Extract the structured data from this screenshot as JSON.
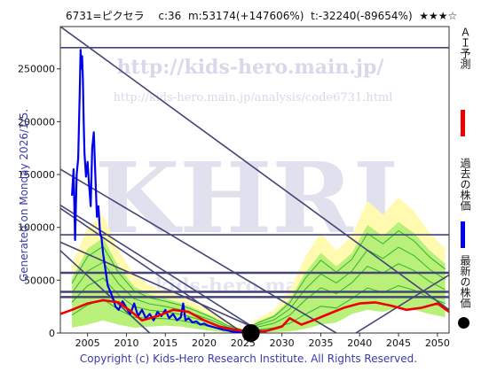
{
  "header": {
    "title": "6731=ピクセラ　 c:36  m:53174(+147606%)  t:-32240(-89654%)  ★★★☆"
  },
  "side_note": "Generated on Monday 2026/1/5.",
  "footer": "Copyright (c) Kids-Hero Research Institute. All Rights Reserved.",
  "watermark": {
    "url_main": "http://kids-hero.main.jp/",
    "url_path": "http://kids-hero.main.jp/analysis/code6731.html",
    "logo": "KHRI",
    "small": "(c) kids-hero.main.jp"
  },
  "legend": [
    {
      "text": "ＡＩ予測",
      "color": "#ee0000"
    },
    {
      "text": "過去の株価",
      "color": "#0000ee"
    },
    {
      "text": "最新の株価",
      "color": "#000000"
    }
  ],
  "chart_data": {
    "type": "line",
    "xlim": [
      2001.5,
      2051.5
    ],
    "ylim": [
      0,
      290000
    ],
    "xticks": [
      2005,
      2010,
      2015,
      2020,
      2025,
      2030,
      2035,
      2040,
      2045,
      2050
    ],
    "yticks": [
      0,
      50000,
      100000,
      150000,
      200000,
      250000
    ],
    "series": [
      {
        "name": "過去の株価",
        "color": "#0000ee",
        "x": [
          2003.0,
          2003.2,
          2003.4,
          2003.6,
          2003.8,
          2004.0,
          2004.1,
          2004.2,
          2004.3,
          2004.4,
          2004.5,
          2004.6,
          2004.8,
          2005.0,
          2005.2,
          2005.4,
          2005.6,
          2005.8,
          2006.0,
          2006.2,
          2006.4,
          2006.6,
          2006.8,
          2007.0,
          2007.3,
          2007.6,
          2008.0,
          2008.3,
          2008.6,
          2009.0,
          2009.5,
          2010.0,
          2010.5,
          2011.0,
          2011.5,
          2012.0,
          2012.5,
          2013.0,
          2013.5,
          2014.0,
          2014.5,
          2015.0,
          2015.5,
          2016.0,
          2016.5,
          2017.0,
          2017.3,
          2017.6,
          2018.0,
          2018.5,
          2019.0,
          2019.5,
          2020.0,
          2020.5,
          2021.0,
          2021.5,
          2022.0,
          2022.5,
          2023.0,
          2023.5,
          2024.0,
          2024.5,
          2025.0,
          2025.5,
          2026.0
        ],
        "y": [
          130000,
          155000,
          88000,
          150000,
          165000,
          230000,
          268000,
          250000,
          262000,
          240000,
          200000,
          170000,
          148000,
          162000,
          140000,
          120000,
          175000,
          190000,
          150000,
          110000,
          120000,
          95000,
          90000,
          75000,
          60000,
          45000,
          38000,
          32000,
          25000,
          22000,
          30000,
          24000,
          18000,
          28000,
          16000,
          22000,
          14000,
          18000,
          12000,
          20000,
          16000,
          22000,
          14000,
          18000,
          12000,
          15000,
          28000,
          12000,
          14000,
          10000,
          11000,
          8000,
          9000,
          7000,
          6000,
          5000,
          4000,
          3000,
          2500,
          1500,
          1000,
          600,
          400,
          200,
          100
        ]
      },
      {
        "name": "ＡＩ予測",
        "color": "#ee0000",
        "x": [
          2001.5,
          2003,
          2005,
          2007,
          2009,
          2010.5,
          2012,
          2014,
          2016,
          2018,
          2020,
          2022,
          2024,
          2026,
          2028,
          2030,
          2031,
          2032.5,
          2034,
          2036,
          2038,
          2040,
          2042,
          2044,
          2046,
          2048,
          2050,
          2051.5
        ],
        "y": [
          18000,
          22000,
          28000,
          31000,
          29000,
          21000,
          12000,
          16000,
          22000,
          20000,
          12000,
          6000,
          3000,
          1000,
          2000,
          6000,
          14000,
          8000,
          12000,
          18000,
          24000,
          28000,
          29000,
          26000,
          22000,
          24000,
          28000,
          20000
        ]
      }
    ],
    "latest_price": {
      "x": 2026.0,
      "y": 36
    },
    "hlines": [
      270000,
      93000,
      57000,
      39000,
      34000
    ],
    "trendlines": [
      {
        "from": [
          2001.5,
          290000
        ],
        "to": [
          2051.5,
          22000
        ]
      },
      {
        "from": [
          2001.5,
          155000
        ],
        "to": [
          2037.0,
          0
        ]
      },
      {
        "from": [
          2001.5,
          121000
        ],
        "to": [
          2027.5,
          0
        ]
      },
      {
        "from": [
          2001.5,
          118000
        ],
        "to": [
          2025.0,
          0
        ]
      },
      {
        "from": [
          2001.5,
          86000
        ],
        "to": [
          2028.0,
          0
        ]
      },
      {
        "from": [
          2001.5,
          78000
        ],
        "to": [
          2013.0,
          0
        ]
      },
      {
        "from": [
          2039.5,
          0
        ],
        "to": [
          2051.5,
          55000
        ]
      }
    ],
    "forecast_band": {
      "upper": [
        [
          2003,
          65000
        ],
        [
          2005,
          100000
        ],
        [
          2007,
          112000
        ],
        [
          2009,
          78000
        ],
        [
          2011,
          55000
        ],
        [
          2013,
          45000
        ],
        [
          2015,
          40000
        ],
        [
          2017,
          35000
        ],
        [
          2019,
          28000
        ],
        [
          2021,
          20000
        ],
        [
          2023,
          10000
        ],
        [
          2025,
          4000
        ],
        [
          2027,
          14000
        ],
        [
          2029,
          22000
        ],
        [
          2031,
          40000
        ],
        [
          2033,
          72000
        ],
        [
          2035,
          95000
        ],
        [
          2037,
          78000
        ],
        [
          2039,
          92000
        ],
        [
          2041,
          125000
        ],
        [
          2043,
          112000
        ],
        [
          2045,
          128000
        ],
        [
          2047,
          115000
        ],
        [
          2049,
          95000
        ],
        [
          2051,
          80000
        ]
      ],
      "lower": [
        [
          2003,
          5000
        ],
        [
          2005,
          8000
        ],
        [
          2007,
          12000
        ],
        [
          2009,
          8000
        ],
        [
          2011,
          5000
        ],
        [
          2013,
          6000
        ],
        [
          2015,
          7000
        ],
        [
          2017,
          6000
        ],
        [
          2019,
          4000
        ],
        [
          2021,
          2000
        ],
        [
          2023,
          500
        ],
        [
          2025,
          200
        ],
        [
          2027,
          500
        ],
        [
          2029,
          800
        ],
        [
          2031,
          1500
        ],
        [
          2033,
          4000
        ],
        [
          2035,
          8000
        ],
        [
          2037,
          10000
        ],
        [
          2039,
          18000
        ],
        [
          2041,
          22000
        ],
        [
          2043,
          20000
        ],
        [
          2045,
          24000
        ],
        [
          2047,
          22000
        ],
        [
          2049,
          18000
        ],
        [
          2051,
          15000
        ]
      ]
    }
  }
}
